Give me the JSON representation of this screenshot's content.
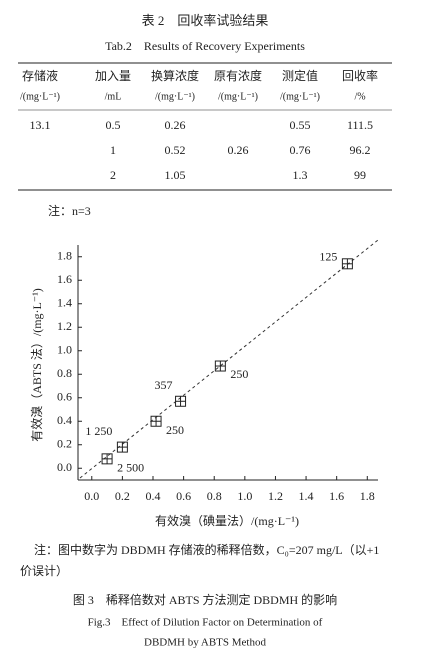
{
  "table_caption": {
    "title": "表 2　回收率试验结果",
    "title_en": "Tab.2　Results of Recovery Experiments"
  },
  "table": {
    "header": [
      {
        "name": "存储液",
        "unit": "/(mg·L⁻¹)"
      },
      {
        "name": "加入量",
        "unit": "/mL"
      },
      {
        "name": "换算浓度",
        "unit": "/(mg·L⁻¹)"
      },
      {
        "name": "原有浓度",
        "unit": "/(mg·L⁻¹)"
      },
      {
        "name": "测定值",
        "unit": "/(mg·L⁻¹)"
      },
      {
        "name": "回收率",
        "unit": "/%"
      }
    ],
    "rows": [
      [
        "13.1",
        "0.5",
        "0.26",
        null,
        "0.55",
        "111.5"
      ],
      [
        null,
        "1",
        "0.52",
        "0.26",
        "0.76",
        "96.2"
      ],
      [
        null,
        "2",
        "1.05",
        null,
        "1.3",
        "99"
      ]
    ],
    "note": "注：n=3"
  },
  "chart_data": {
    "type": "scatter",
    "x_label": "有效溴（碘量法）/(mg·L⁻¹)",
    "y_label": "有效溴（ABTS 法）/(mg·L⁻¹)",
    "x": [
      0.1,
      0.2,
      0.42,
      0.58,
      0.84,
      1.67
    ],
    "values": [
      0.08,
      0.18,
      0.4,
      0.57,
      0.87,
      1.74
    ],
    "labels": [
      "2 500",
      "1 250",
      "250",
      "357",
      "250",
      "125"
    ],
    "color": "#222222",
    "xlim": [
      -0.09,
      1.87
    ],
    "ylim": [
      -0.1,
      1.9
    ],
    "xticks": [
      {
        "value": 0,
        "label": "0.0"
      },
      0.2,
      0.4,
      0.6,
      0.8,
      {
        "value": 1,
        "label": "1.0"
      },
      1.2,
      1.4,
      1.6,
      1.8
    ],
    "yticks": [
      {
        "value": 0,
        "label": "0.0"
      },
      0.2,
      0.4,
      0.6,
      0.8,
      {
        "value": 1,
        "label": "1.0"
      },
      1.2,
      1.4,
      1.6,
      1.8
    ]
  },
  "figure": {
    "note": [
      "注：图中数字为 DBDMH 存储液的稀释倍数，C₀=207 mg/L（以+1",
      "价误计）"
    ],
    "caption": "图 3　稀释倍数对 ABTS 方法测定 DBDMH 的影响",
    "caption_en": [
      "Fig.3　Effect of Dilution Factor on Determination of",
      "DBDMH by ABTS Method"
    ]
  }
}
